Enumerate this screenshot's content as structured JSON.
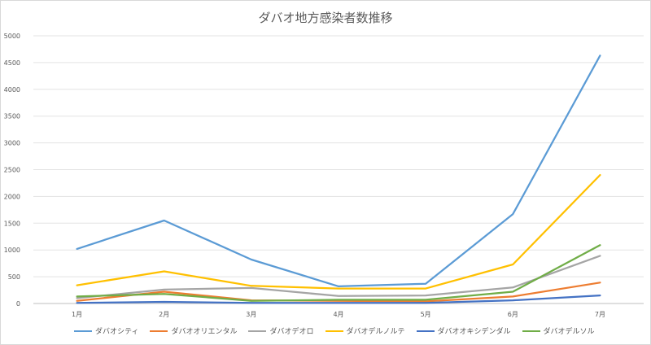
{
  "chart_data": {
    "type": "line",
    "title": "ダバオ地方感染者数推移",
    "xlabel": "",
    "ylabel": "",
    "categories": [
      "1月",
      "2月",
      "3月",
      "4月",
      "5月",
      "6月",
      "7月"
    ],
    "ylim": [
      0,
      5000
    ],
    "yticks": [
      0,
      500,
      1000,
      1500,
      2000,
      2500,
      3000,
      3500,
      4000,
      4500,
      5000
    ],
    "grid": true,
    "legend_position": "bottom",
    "series": [
      {
        "name": "ダバオシティ",
        "color": "#5b9bd5",
        "values": [
          1020,
          1550,
          820,
          320,
          370,
          1670,
          4630
        ]
      },
      {
        "name": "ダバオオリエンタル",
        "color": "#ed7d31",
        "values": [
          50,
          220,
          60,
          50,
          40,
          130,
          390
        ]
      },
      {
        "name": "ダバオデオロ",
        "color": "#a5a5a5",
        "values": [
          100,
          260,
          290,
          140,
          150,
          300,
          890
        ]
      },
      {
        "name": "ダバオデルノルテ",
        "color": "#ffc000",
        "values": [
          340,
          600,
          330,
          280,
          280,
          730,
          2400
        ]
      },
      {
        "name": "ダバオオキシデンダル",
        "color": "#4472c4",
        "values": [
          10,
          30,
          10,
          10,
          10,
          60,
          150
        ]
      },
      {
        "name": "ダバオデルソル",
        "color": "#70ad47",
        "values": [
          130,
          180,
          50,
          70,
          70,
          220,
          1090
        ]
      }
    ]
  }
}
